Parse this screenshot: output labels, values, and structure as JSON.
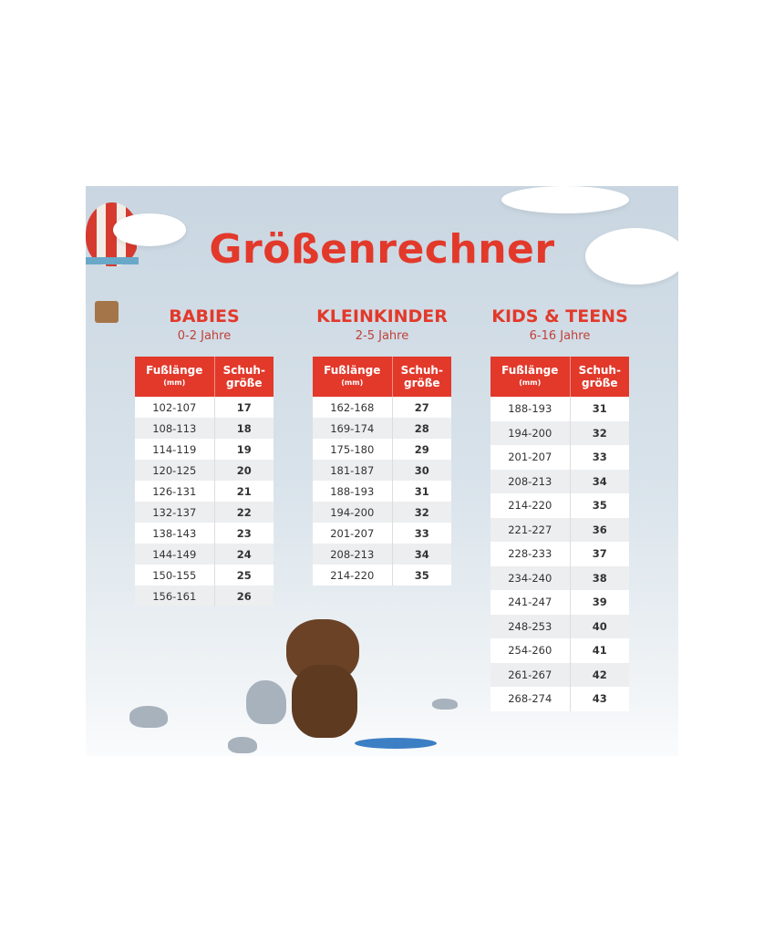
{
  "title": "Größenrechner",
  "header": {
    "foot_length": "Fußlänge",
    "unit": "(mm)",
    "shoe_size_1": "Schuh-",
    "shoe_size_2": "größe"
  },
  "sections": [
    {
      "name": "BABIES",
      "age": "0-2 Jahre",
      "rows": [
        [
          "102-107",
          "17"
        ],
        [
          "108-113",
          "18"
        ],
        [
          "114-119",
          "19"
        ],
        [
          "120-125",
          "20"
        ],
        [
          "126-131",
          "21"
        ],
        [
          "132-137",
          "22"
        ],
        [
          "138-143",
          "23"
        ],
        [
          "144-149",
          "24"
        ],
        [
          "150-155",
          "25"
        ],
        [
          "156-161",
          "26"
        ]
      ]
    },
    {
      "name": "KLEINKINDER",
      "age": "2-5 Jahre",
      "rows": [
        [
          "162-168",
          "27"
        ],
        [
          "169-174",
          "28"
        ],
        [
          "175-180",
          "29"
        ],
        [
          "181-187",
          "30"
        ],
        [
          "188-193",
          "31"
        ],
        [
          "194-200",
          "32"
        ],
        [
          "201-207",
          "33"
        ],
        [
          "208-213",
          "34"
        ],
        [
          "214-220",
          "35"
        ]
      ]
    },
    {
      "name": "KIDS & TEENS",
      "age": "6-16 Jahre",
      "rows": [
        [
          "188-193",
          "31"
        ],
        [
          "194-200",
          "32"
        ],
        [
          "201-207",
          "33"
        ],
        [
          "208-213",
          "34"
        ],
        [
          "214-220",
          "35"
        ],
        [
          "221-227",
          "36"
        ],
        [
          "228-233",
          "37"
        ],
        [
          "234-240",
          "38"
        ],
        [
          "241-247",
          "39"
        ],
        [
          "248-253",
          "40"
        ],
        [
          "254-260",
          "41"
        ],
        [
          "261-267",
          "42"
        ],
        [
          "268-274",
          "43"
        ]
      ]
    }
  ],
  "colors": {
    "accent": "#e2392b",
    "background": "#d3dee7"
  },
  "decorations": [
    "hot-air-balloon",
    "clouds",
    "teddy-bear-fishing",
    "rocks"
  ]
}
